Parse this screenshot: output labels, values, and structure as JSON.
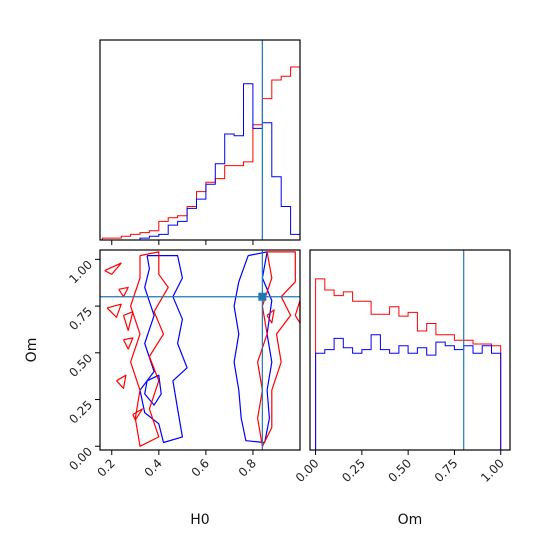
{
  "chart_data": [
    {
      "type": "histogram",
      "panel": "H0-marginal",
      "xlim": [
        0.15,
        1.0
      ],
      "truth": 0.84,
      "bin_edges": [
        0.16,
        0.2,
        0.24,
        0.28,
        0.32,
        0.36,
        0.4,
        0.44,
        0.48,
        0.52,
        0.56,
        0.6,
        0.64,
        0.68,
        0.72,
        0.76,
        0.8,
        0.84,
        0.88,
        0.92,
        0.96,
        1.0
      ],
      "series": [
        {
          "name": "",
          "color": "#ff0000",
          "values": [
            0.01,
            0.01,
            0.02,
            0.03,
            0.04,
            0.05,
            0.1,
            0.12,
            0.13,
            0.18,
            0.26,
            0.31,
            0.33,
            0.4,
            0.4,
            0.42,
            0.62,
            0.76,
            0.86,
            0.88,
            0.93
          ]
        },
        {
          "name": "",
          "color": "#0000ff",
          "values": [
            0.0,
            0.0,
            0.0,
            0.0,
            0.01,
            0.02,
            0.03,
            0.08,
            0.1,
            0.17,
            0.22,
            0.3,
            0.41,
            0.57,
            0.56,
            0.84,
            0.6,
            0.63,
            0.34,
            0.18,
            0.03
          ]
        }
      ]
    },
    {
      "type": "contour",
      "panel": "H0-Om-joint",
      "xlabel": "H0",
      "ylabel": "Om",
      "xlim": [
        0.15,
        1.0
      ],
      "ylim": [
        -0.02,
        1.05
      ],
      "xticks": [
        "0.2",
        "0.4",
        "0.6",
        "0.8"
      ],
      "xtick_values": [
        0.2,
        0.4,
        0.6,
        0.8
      ],
      "yticks": [
        "0.00",
        "0.25",
        "0.50",
        "0.75",
        "1.00"
      ],
      "ytick_values": [
        0.0,
        0.25,
        0.5,
        0.75,
        1.0
      ],
      "truth": [
        0.84,
        0.8
      ],
      "series": [
        {
          "name": "",
          "color": "#0000ff",
          "contours": [
            [
              [
                0.35,
                1.02
              ],
              [
                0.48,
                1.02
              ],
              [
                0.5,
                0.9
              ],
              [
                0.46,
                0.8
              ],
              [
                0.5,
                0.68
              ],
              [
                0.48,
                0.55
              ],
              [
                0.52,
                0.42
              ],
              [
                0.46,
                0.35
              ],
              [
                0.48,
                0.2
              ],
              [
                0.5,
                0.05
              ],
              [
                0.42,
                0.02
              ],
              [
                0.4,
                0.12
              ],
              [
                0.34,
                0.18
              ],
              [
                0.32,
                0.3
              ],
              [
                0.38,
                0.4
              ],
              [
                0.34,
                0.55
              ],
              [
                0.38,
                0.7
              ],
              [
                0.34,
                0.85
              ],
              [
                0.36,
                0.95
              ],
              [
                0.35,
                1.02
              ]
            ],
            [
              [
                0.78,
                1.02
              ],
              [
                0.86,
                1.04
              ],
              [
                0.84,
                0.9
              ],
              [
                0.88,
                0.78
              ],
              [
                0.86,
                0.6
              ],
              [
                0.88,
                0.45
              ],
              [
                0.86,
                0.3
              ],
              [
                0.87,
                0.15
              ],
              [
                0.85,
                0.02
              ],
              [
                0.77,
                0.03
              ],
              [
                0.75,
                0.15
              ],
              [
                0.74,
                0.3
              ],
              [
                0.72,
                0.45
              ],
              [
                0.74,
                0.6
              ],
              [
                0.72,
                0.75
              ],
              [
                0.74,
                0.88
              ],
              [
                0.78,
                1.02
              ]
            ],
            [
              [
                0.35,
                0.35
              ],
              [
                0.4,
                0.38
              ],
              [
                0.41,
                0.28
              ],
              [
                0.38,
                0.22
              ],
              [
                0.34,
                0.28
              ],
              [
                0.35,
                0.35
              ]
            ]
          ]
        },
        {
          "name": "",
          "color": "#ff0000",
          "contours": [
            [
              [
                0.32,
                1.02
              ],
              [
                0.4,
                1.04
              ],
              [
                0.4,
                0.92
              ],
              [
                0.44,
                0.85
              ],
              [
                0.38,
                0.72
              ],
              [
                0.42,
                0.6
              ],
              [
                0.36,
                0.48
              ],
              [
                0.4,
                0.35
              ],
              [
                0.36,
                0.2
              ],
              [
                0.4,
                0.05
              ],
              [
                0.32,
                0.0
              ],
              [
                0.3,
                0.15
              ],
              [
                0.32,
                0.3
              ],
              [
                0.28,
                0.45
              ],
              [
                0.32,
                0.6
              ],
              [
                0.28,
                0.75
              ],
              [
                0.32,
                0.9
              ],
              [
                0.32,
                1.02
              ]
            ],
            [
              [
                0.86,
                1.04
              ],
              [
                0.98,
                1.04
              ],
              [
                0.98,
                0.88
              ],
              [
                0.92,
                0.8
              ],
              [
                0.96,
                0.7
              ],
              [
                0.9,
                0.6
              ],
              [
                0.92,
                0.45
              ],
              [
                0.88,
                0.3
              ],
              [
                0.88,
                0.1
              ],
              [
                0.84,
                0.0
              ],
              [
                0.82,
                0.15
              ],
              [
                0.84,
                0.3
              ],
              [
                0.82,
                0.45
              ],
              [
                0.86,
                0.6
              ],
              [
                0.84,
                0.75
              ],
              [
                0.88,
                0.9
              ],
              [
                0.86,
                1.04
              ]
            ],
            [
              [
                0.17,
                0.94
              ],
              [
                0.24,
                0.98
              ],
              [
                0.2,
                0.92
              ],
              [
                0.17,
                0.94
              ]
            ],
            [
              [
                0.23,
                0.84
              ],
              [
                0.27,
                0.85
              ],
              [
                0.25,
                0.8
              ],
              [
                0.23,
                0.84
              ]
            ],
            [
              [
                0.18,
                0.74
              ],
              [
                0.24,
                0.76
              ],
              [
                0.22,
                0.69
              ],
              [
                0.18,
                0.74
              ]
            ],
            [
              [
                0.25,
                0.7
              ],
              [
                0.29,
                0.72
              ],
              [
                0.27,
                0.62
              ],
              [
                0.25,
                0.7
              ]
            ],
            [
              [
                0.25,
                0.57
              ],
              [
                0.29,
                0.58
              ],
              [
                0.27,
                0.52
              ],
              [
                0.25,
                0.57
              ]
            ],
            [
              [
                0.22,
                0.35
              ],
              [
                0.26,
                0.38
              ],
              [
                0.25,
                0.31
              ],
              [
                0.22,
                0.35
              ]
            ],
            [
              [
                0.29,
                0.17
              ],
              [
                0.33,
                0.2
              ],
              [
                0.3,
                0.14
              ],
              [
                0.29,
                0.17
              ]
            ],
            [
              [
                0.86,
                0.7
              ],
              [
                0.89,
                0.73
              ],
              [
                0.88,
                0.66
              ],
              [
                0.86,
                0.7
              ]
            ],
            [
              [
                0.98,
                0.7
              ],
              [
                1.0,
                0.78
              ],
              [
                1.0,
                0.66
              ],
              [
                0.98,
                0.7
              ]
            ]
          ]
        }
      ]
    },
    {
      "type": "histogram",
      "panel": "Om-marginal",
      "xlabel": "Om",
      "xlim": [
        -0.03,
        1.05
      ],
      "xticks": [
        "0.00",
        "0.25",
        "0.50",
        "0.75",
        "1.00"
      ],
      "xtick_values": [
        0.0,
        0.25,
        0.5,
        0.75,
        1.0
      ],
      "truth": 0.8,
      "bin_edges": [
        0.0,
        0.05,
        0.1,
        0.15,
        0.2,
        0.25,
        0.3,
        0.35,
        0.4,
        0.45,
        0.5,
        0.55,
        0.6,
        0.65,
        0.7,
        0.75,
        0.8,
        0.85,
        0.9,
        0.95,
        1.0
      ],
      "series": [
        {
          "name": "",
          "color": "#ff0000",
          "values": [
            0.92,
            0.86,
            0.83,
            0.85,
            0.8,
            0.8,
            0.73,
            0.73,
            0.77,
            0.72,
            0.74,
            0.64,
            0.68,
            0.62,
            0.62,
            0.59,
            0.59,
            0.57,
            0.57,
            0.56
          ]
        },
        {
          "name": "",
          "color": "#0000ff",
          "values": [
            0.52,
            0.54,
            0.6,
            0.55,
            0.52,
            0.54,
            0.62,
            0.54,
            0.52,
            0.56,
            0.52,
            0.55,
            0.51,
            0.58,
            0.56,
            0.54,
            0.56,
            0.52,
            0.56,
            0.52
          ]
        }
      ]
    }
  ]
}
